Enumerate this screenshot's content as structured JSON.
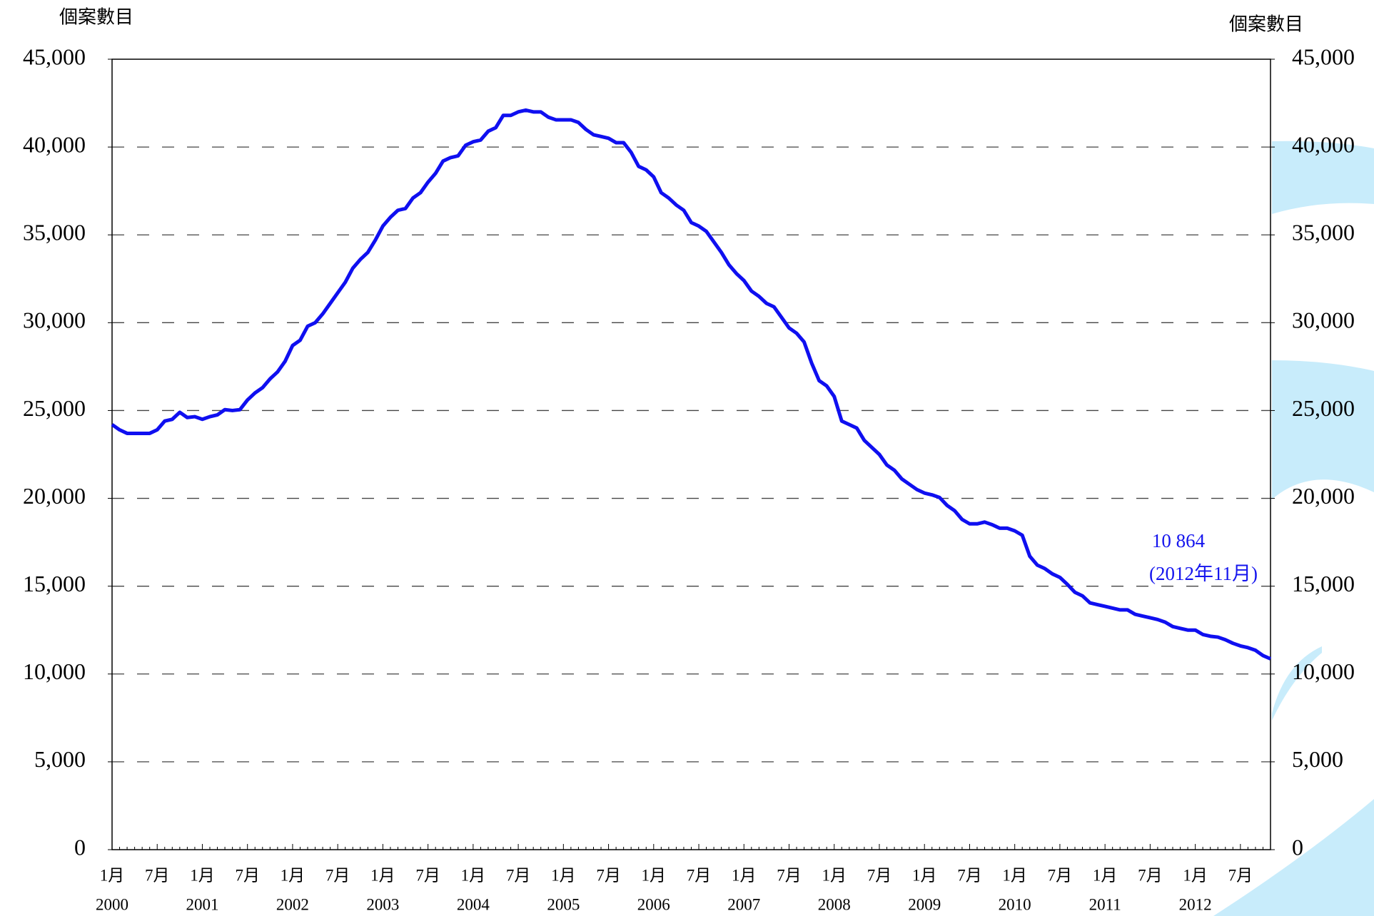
{
  "chart_data": {
    "type": "line",
    "y_label": "個案數目",
    "y2_label": "個案數目",
    "categories": [
      "1月",
      null,
      null,
      null,
      null,
      null,
      "7月",
      null,
      null,
      null,
      null,
      null,
      "1月",
      null,
      null,
      null,
      null,
      null,
      "7月",
      null,
      null,
      null,
      null,
      null,
      "1月",
      null,
      null,
      null,
      null,
      null,
      "7月",
      null,
      null,
      null,
      null,
      null,
      "1月",
      null,
      null,
      null,
      null,
      null,
      "7月",
      null,
      null,
      null,
      null,
      null,
      "1月",
      null,
      null,
      null,
      null,
      null,
      "7月",
      null,
      null,
      null,
      null,
      null,
      "1月",
      null,
      null,
      null,
      null,
      null,
      "7月",
      null,
      null,
      null,
      null,
      null,
      "1月",
      null,
      null,
      null,
      null,
      null,
      "7月",
      null,
      null,
      null,
      null,
      null,
      "1月",
      null,
      null,
      null,
      null,
      null,
      "7月",
      null,
      null,
      null,
      null,
      null,
      "1月",
      null,
      null,
      null,
      null,
      null,
      "7月",
      null,
      null,
      null,
      null,
      null,
      "1月",
      null,
      null,
      null,
      null,
      null,
      "7月",
      null,
      null,
      null,
      null,
      null,
      "1月",
      null,
      null,
      null,
      null,
      null,
      "7月",
      null,
      null,
      null,
      null,
      null,
      "1月",
      null,
      null,
      null,
      null,
      null,
      "7月",
      null,
      null,
      null,
      null,
      null,
      "1月",
      null,
      null,
      null,
      null,
      null,
      "7月",
      null,
      null,
      null,
      null
    ],
    "year_labels": [
      "2000",
      "2001",
      "2002",
      "2003",
      "2004",
      "2005",
      "2006",
      "2007",
      "2008",
      "2009",
      "2010",
      "2011",
      "2012"
    ],
    "series": [
      {
        "color": "#0f0ff0",
        "values": [
          24200,
          23900,
          23700,
          23700,
          23700,
          23700,
          23900,
          24400,
          24500,
          24900,
          24600,
          24650,
          24500,
          24650,
          24750,
          25050,
          25000,
          25050,
          25600,
          26000,
          26300,
          26800,
          27200,
          27800,
          28700,
          29000,
          29800,
          30000,
          30500,
          31100,
          31700,
          32300,
          33100,
          33600,
          34000,
          34700,
          35500,
          36000,
          36400,
          36500,
          37100,
          37400,
          38000,
          38500,
          39200,
          39400,
          39500,
          40100,
          40300,
          40400,
          40900,
          41100,
          41800,
          41800,
          42000,
          42100,
          42000,
          42000,
          41700,
          41550,
          41550,
          41550,
          41400,
          41000,
          40700,
          40600,
          40500,
          40250,
          40250,
          39700,
          38900,
          38700,
          38300,
          37400,
          37100,
          36700,
          36400,
          35700,
          35500,
          35200,
          34600,
          34000,
          33300,
          32800,
          32400,
          31800,
          31500,
          31100,
          30900,
          30300,
          29700,
          29400,
          28900,
          27700,
          26700,
          26400,
          25800,
          24400,
          24200,
          24000,
          23300,
          22900,
          22500,
          21900,
          21600,
          21100,
          20800,
          20500,
          20300,
          20200,
          20050,
          19600,
          19300,
          18800,
          18550,
          18550,
          18650,
          18500,
          18300,
          18300,
          18150,
          17900,
          16700,
          16200,
          16000,
          15700,
          15500,
          15100,
          14650,
          14450,
          14050,
          13950,
          13850,
          13750,
          13650,
          13650,
          13400,
          13300,
          13200,
          13100,
          12950,
          12700,
          12600,
          12500,
          12500,
          12250,
          12150,
          12100,
          11950,
          11750,
          11600,
          11500,
          11350,
          11050,
          10864
        ]
      }
    ],
    "annotation": {
      "value_label": "10 864",
      "date_label": "(2012年11月)"
    },
    "ylim": [
      0,
      45000
    ],
    "yticks": [
      0,
      {
        "value": 5000,
        "label": "5,000"
      },
      {
        "value": 10000,
        "label": "10,000"
      },
      {
        "value": 15000,
        "label": "15,000"
      },
      {
        "value": 20000,
        "label": "20,000"
      },
      {
        "value": 25000,
        "label": "25,000"
      },
      {
        "value": 30000,
        "label": "30,000"
      },
      {
        "value": 35000,
        "label": "35,000"
      },
      {
        "value": 40000,
        "label": "40,000"
      },
      {
        "value": 45000,
        "label": "45,000"
      }
    ],
    "y2lim": [
      0,
      45000
    ],
    "y2ticks": [
      0,
      {
        "value": 5000,
        "label": "5,000"
      },
      {
        "value": 10000,
        "label": "10,000"
      },
      {
        "value": 15000,
        "label": "15,000"
      },
      {
        "value": 20000,
        "label": "20,000"
      },
      {
        "value": 25000,
        "label": "25,000"
      },
      {
        "value": 30000,
        "label": "30,000"
      },
      {
        "value": 35000,
        "label": "35,000"
      },
      {
        "value": 40000,
        "label": "40,000"
      },
      {
        "value": 45000,
        "label": "45,000"
      }
    ],
    "grid": true
  }
}
